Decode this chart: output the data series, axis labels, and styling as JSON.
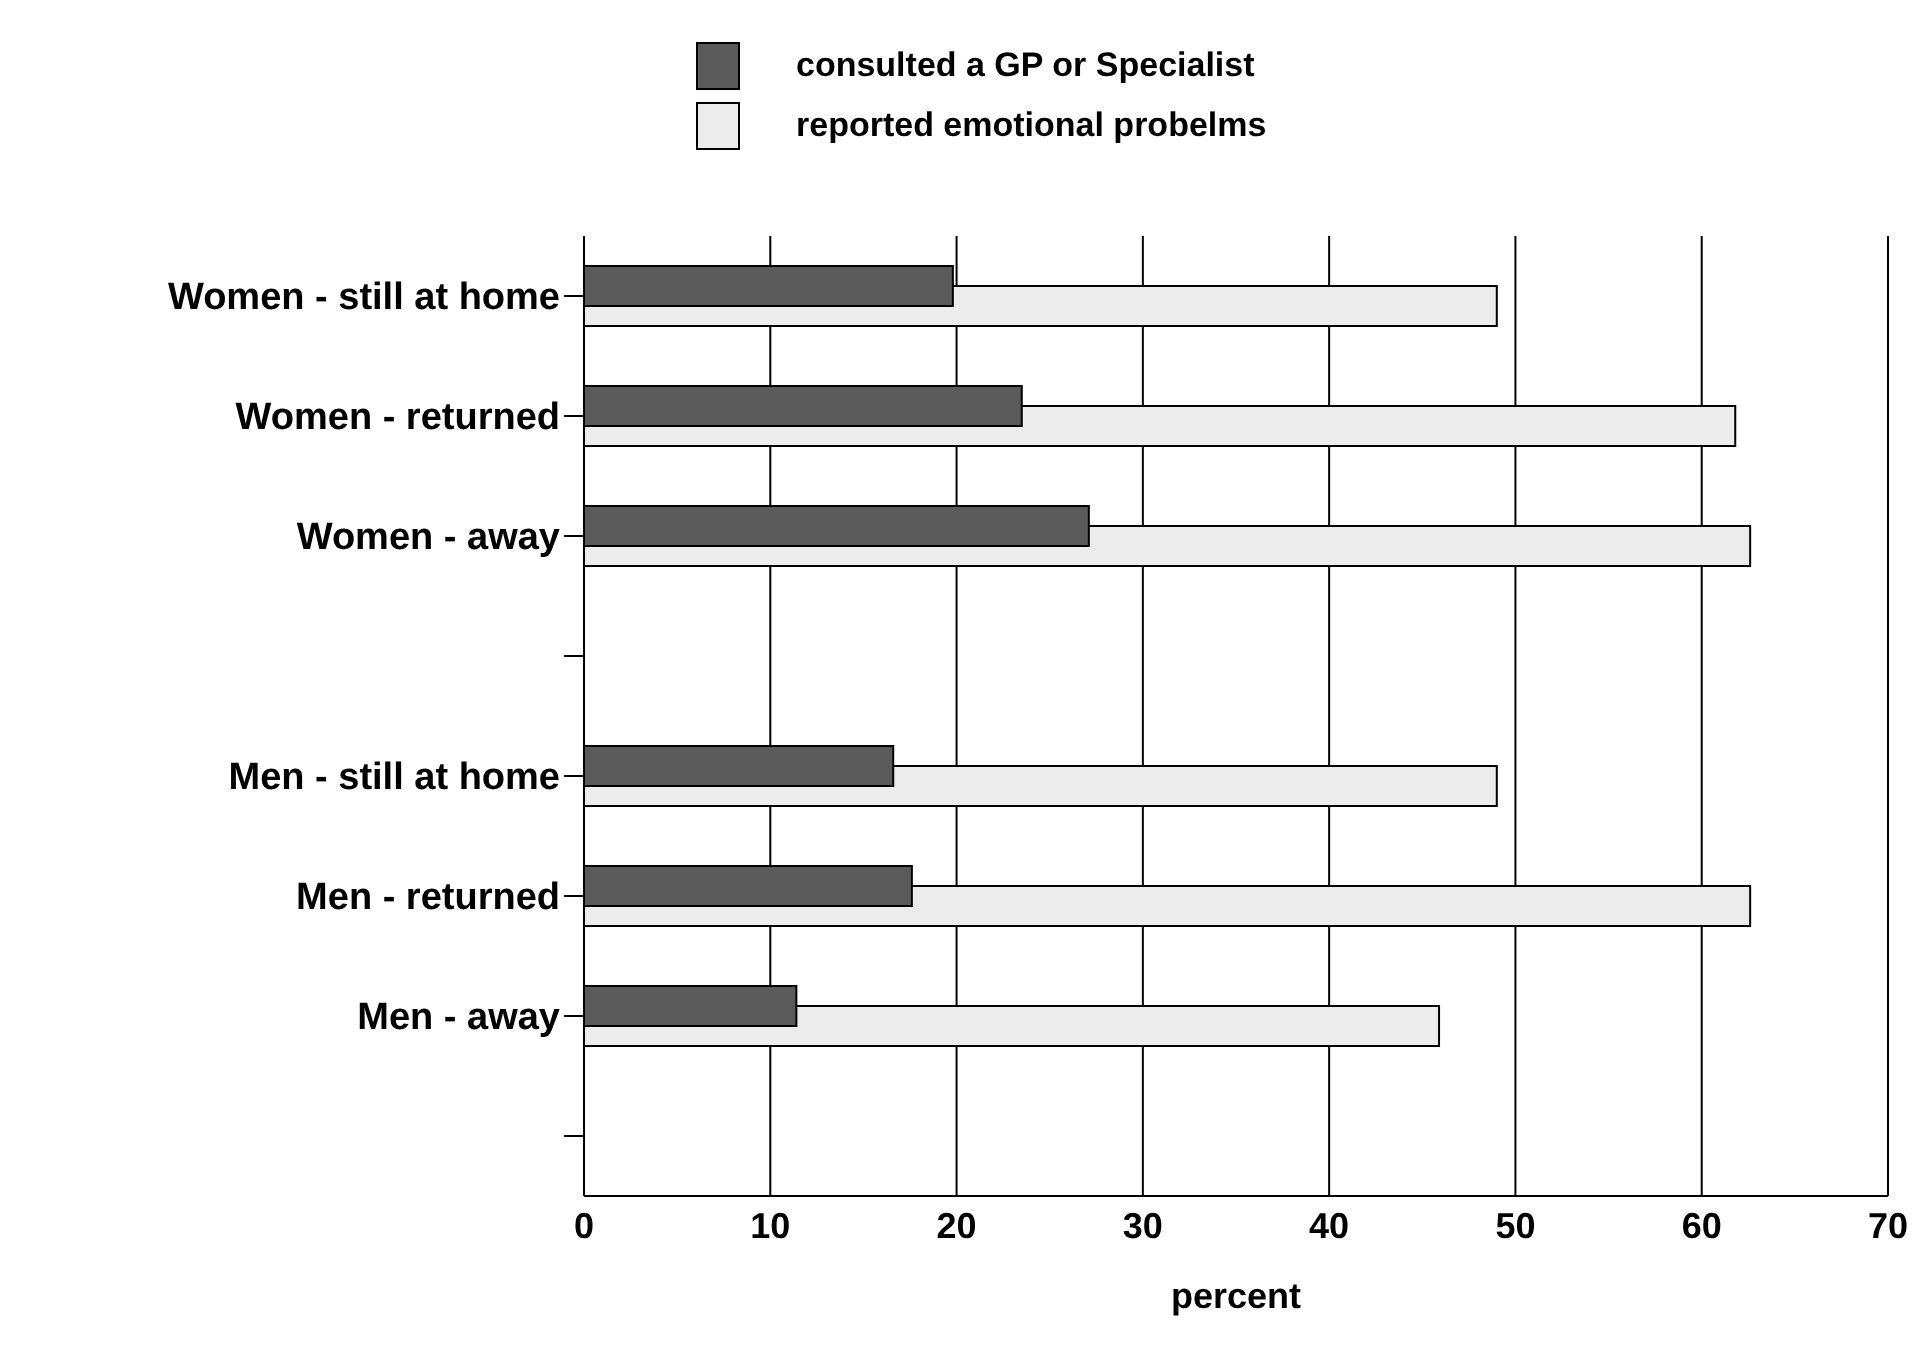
{
  "chart_data": {
    "type": "bar",
    "orientation": "horizontal",
    "xlabel": "percent",
    "categories": [
      "Women - still at home",
      "Women - returned",
      "Women - away",
      null,
      "Men - still at home",
      "Men - returned",
      "Men - away",
      null
    ],
    "series": [
      {
        "name": "consulted a GP or Specialist",
        "color": "#5a5a5a",
        "values": [
          19.8,
          23.5,
          27.1,
          null,
          16.6,
          17.6,
          11.4,
          null
        ]
      },
      {
        "name": "reported emotional probelms",
        "color": "#ececec",
        "values": [
          49.0,
          61.8,
          62.6,
          null,
          49.0,
          62.6,
          45.9,
          null
        ]
      }
    ],
    "xlim": [
      0,
      70
    ],
    "xticks": [
      0,
      10,
      20,
      30,
      40,
      50,
      60,
      70
    ],
    "grid": "x",
    "legend": "top"
  }
}
